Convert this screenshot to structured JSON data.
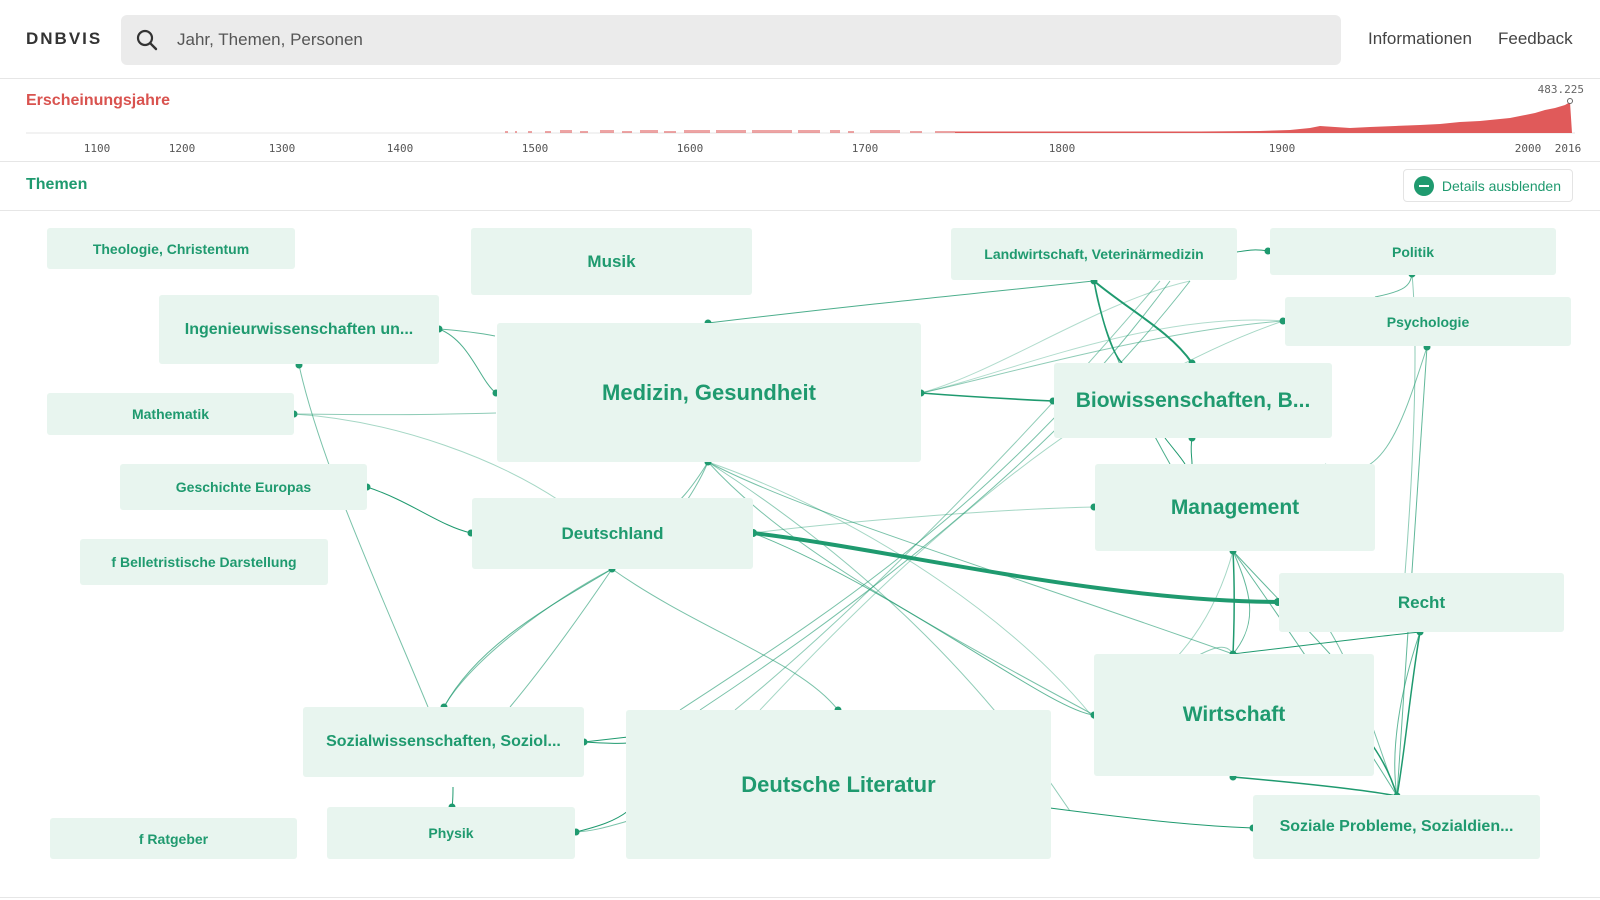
{
  "app": {
    "logo": "DNBVIS"
  },
  "search": {
    "placeholder": "Jahr, Themen, Personen"
  },
  "nav": {
    "informationen": "Informationen",
    "feedback": "Feedback"
  },
  "timeline": {
    "title": "Erscheinungsjahre",
    "max_label": "483.225",
    "bar_color": "#e05a5a",
    "ticks": [
      "1100",
      "1200",
      "1300",
      "1400",
      "1500",
      "1600",
      "1700",
      "1800",
      "1900",
      "2000",
      "2016"
    ]
  },
  "themes": {
    "title": "Themen",
    "details_button": "Details ausblenden",
    "accent": "#1f9a6f",
    "node_bg": "#e8f5ef",
    "nodes": [
      {
        "label": "Theologie, Christentum"
      },
      {
        "label": "Musik"
      },
      {
        "label": "Landwirtschaft, Veterinärmedizin"
      },
      {
        "label": "Politik"
      },
      {
        "label": "Ingenieurwissenschaften un..."
      },
      {
        "label": "Psychologie"
      },
      {
        "label": "Medizin, Gesundheit"
      },
      {
        "label": "Biowissenschaften, B..."
      },
      {
        "label": "Mathematik"
      },
      {
        "label": "Geschichte Europas"
      },
      {
        "label": "Management"
      },
      {
        "label": "Deutschland"
      },
      {
        "label": "f Belletristische Darstellung"
      },
      {
        "label": "Recht"
      },
      {
        "label": "Wirtschaft"
      },
      {
        "label": "Sozialwissenschaften, Soziol..."
      },
      {
        "label": "Deutsche Literatur"
      },
      {
        "label": "Physik"
      },
      {
        "label": "f Ratgeber"
      },
      {
        "label": "Soziale Probleme, Sozialdien..."
      }
    ]
  }
}
